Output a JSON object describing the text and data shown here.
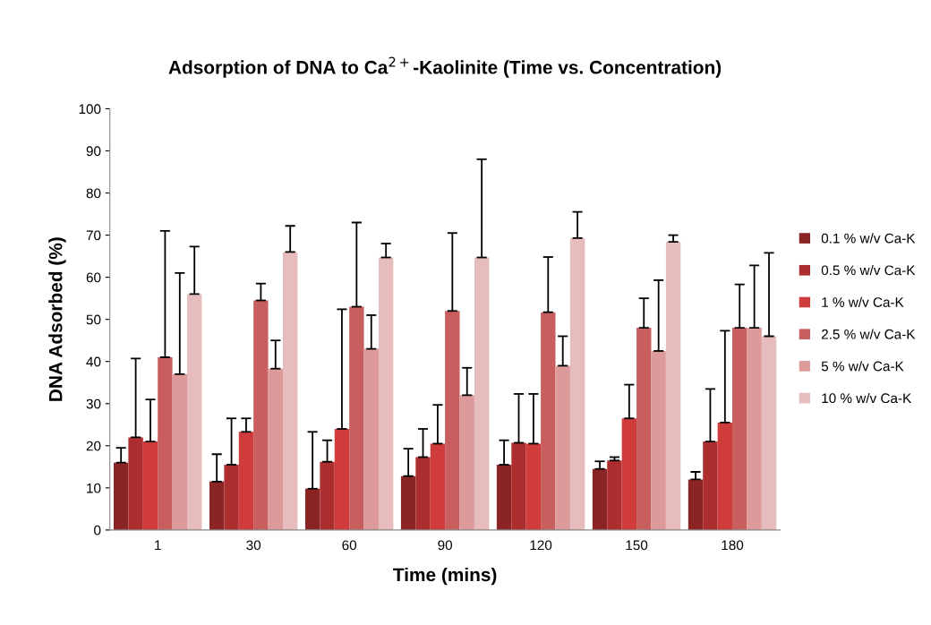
{
  "chart_data": {
    "type": "bar",
    "title": "Adsorption of DNA to Ca$^{2+}$-Kaolinite (Time vs. Concentration)",
    "xlabel": "Time (mins)",
    "ylabel": "DNA Adsorbed (%)",
    "categories": [
      "1",
      "30",
      "60",
      "90",
      "120",
      "150",
      "180"
    ],
    "ylim": [
      0,
      100
    ],
    "yticks": [
      0,
      10,
      20,
      30,
      40,
      50,
      60,
      70,
      80,
      90,
      100
    ],
    "grid": false,
    "legend": "right",
    "series": [
      {
        "name": "0.1 % w/v Ca-K",
        "color": "#8b2525",
        "values": [
          16,
          11.5,
          9.8,
          12.8,
          15.5,
          14.5,
          12
        ],
        "errors": [
          [
            16,
            19.5
          ],
          [
            11.5,
            18
          ],
          [
            9.8,
            23.3
          ],
          [
            12.8,
            19.3
          ],
          [
            15.5,
            21.3
          ],
          [
            14.5,
            16.3
          ],
          [
            12,
            13.8
          ]
        ]
      },
      {
        "name": "0.5 % w/v Ca-K",
        "color": "#ad2e2e",
        "values": [
          22,
          15.5,
          16.2,
          17.3,
          20.7,
          16.5,
          21
        ],
        "errors": [
          [
            22,
            40.7
          ],
          [
            15.5,
            26.5
          ],
          [
            16.2,
            21.3
          ],
          [
            17.3,
            24
          ],
          [
            20.7,
            32.3
          ],
          [
            16.5,
            17.3
          ],
          [
            21,
            33.5
          ]
        ]
      },
      {
        "name": "1 % w/v Ca-K",
        "color": "#d03c3c",
        "values": [
          21,
          23.3,
          24,
          20.5,
          20.5,
          26.5,
          25.5
        ],
        "errors": [
          [
            21,
            31
          ],
          [
            23.3,
            26.5
          ],
          [
            24,
            52.4
          ],
          [
            20.5,
            29.7
          ],
          [
            20.5,
            32.3
          ],
          [
            26.5,
            34.5
          ],
          [
            25.5,
            47.3
          ]
        ]
      },
      {
        "name": "2.5 % w/v Ca-K",
        "color": "#c85e5e",
        "values": [
          41,
          54.5,
          53,
          52,
          51.7,
          48,
          48
        ],
        "errors": [
          [
            41,
            71
          ],
          [
            54.5,
            58.5
          ],
          [
            53,
            73
          ],
          [
            52,
            70.5
          ],
          [
            51.7,
            64.8
          ],
          [
            48,
            55
          ],
          [
            48,
            58.3
          ]
        ]
      },
      {
        "name": "5 % w/v Ca-K",
        "color": "#dc9a9a",
        "values": [
          37,
          38.3,
          43,
          32,
          39,
          42.5,
          48
        ],
        "errors": [
          [
            37,
            61
          ],
          [
            38.3,
            45
          ],
          [
            43,
            51
          ],
          [
            32,
            38.5
          ],
          [
            39,
            46
          ],
          [
            42.5,
            59.3
          ],
          [
            48,
            62.8
          ]
        ]
      },
      {
        "name": "10 % w/v Ca-K",
        "color": "#e6bcbc",
        "values": [
          56,
          66,
          64.7,
          64.7,
          69.3,
          68.4,
          46
        ],
        "errors": [
          [
            56,
            67.3
          ],
          [
            66,
            72.2
          ],
          [
            64.7,
            68
          ],
          [
            64.7,
            88
          ],
          [
            69.3,
            75.5
          ],
          [
            68.4,
            70
          ],
          [
            46,
            65.8
          ]
        ]
      }
    ]
  }
}
